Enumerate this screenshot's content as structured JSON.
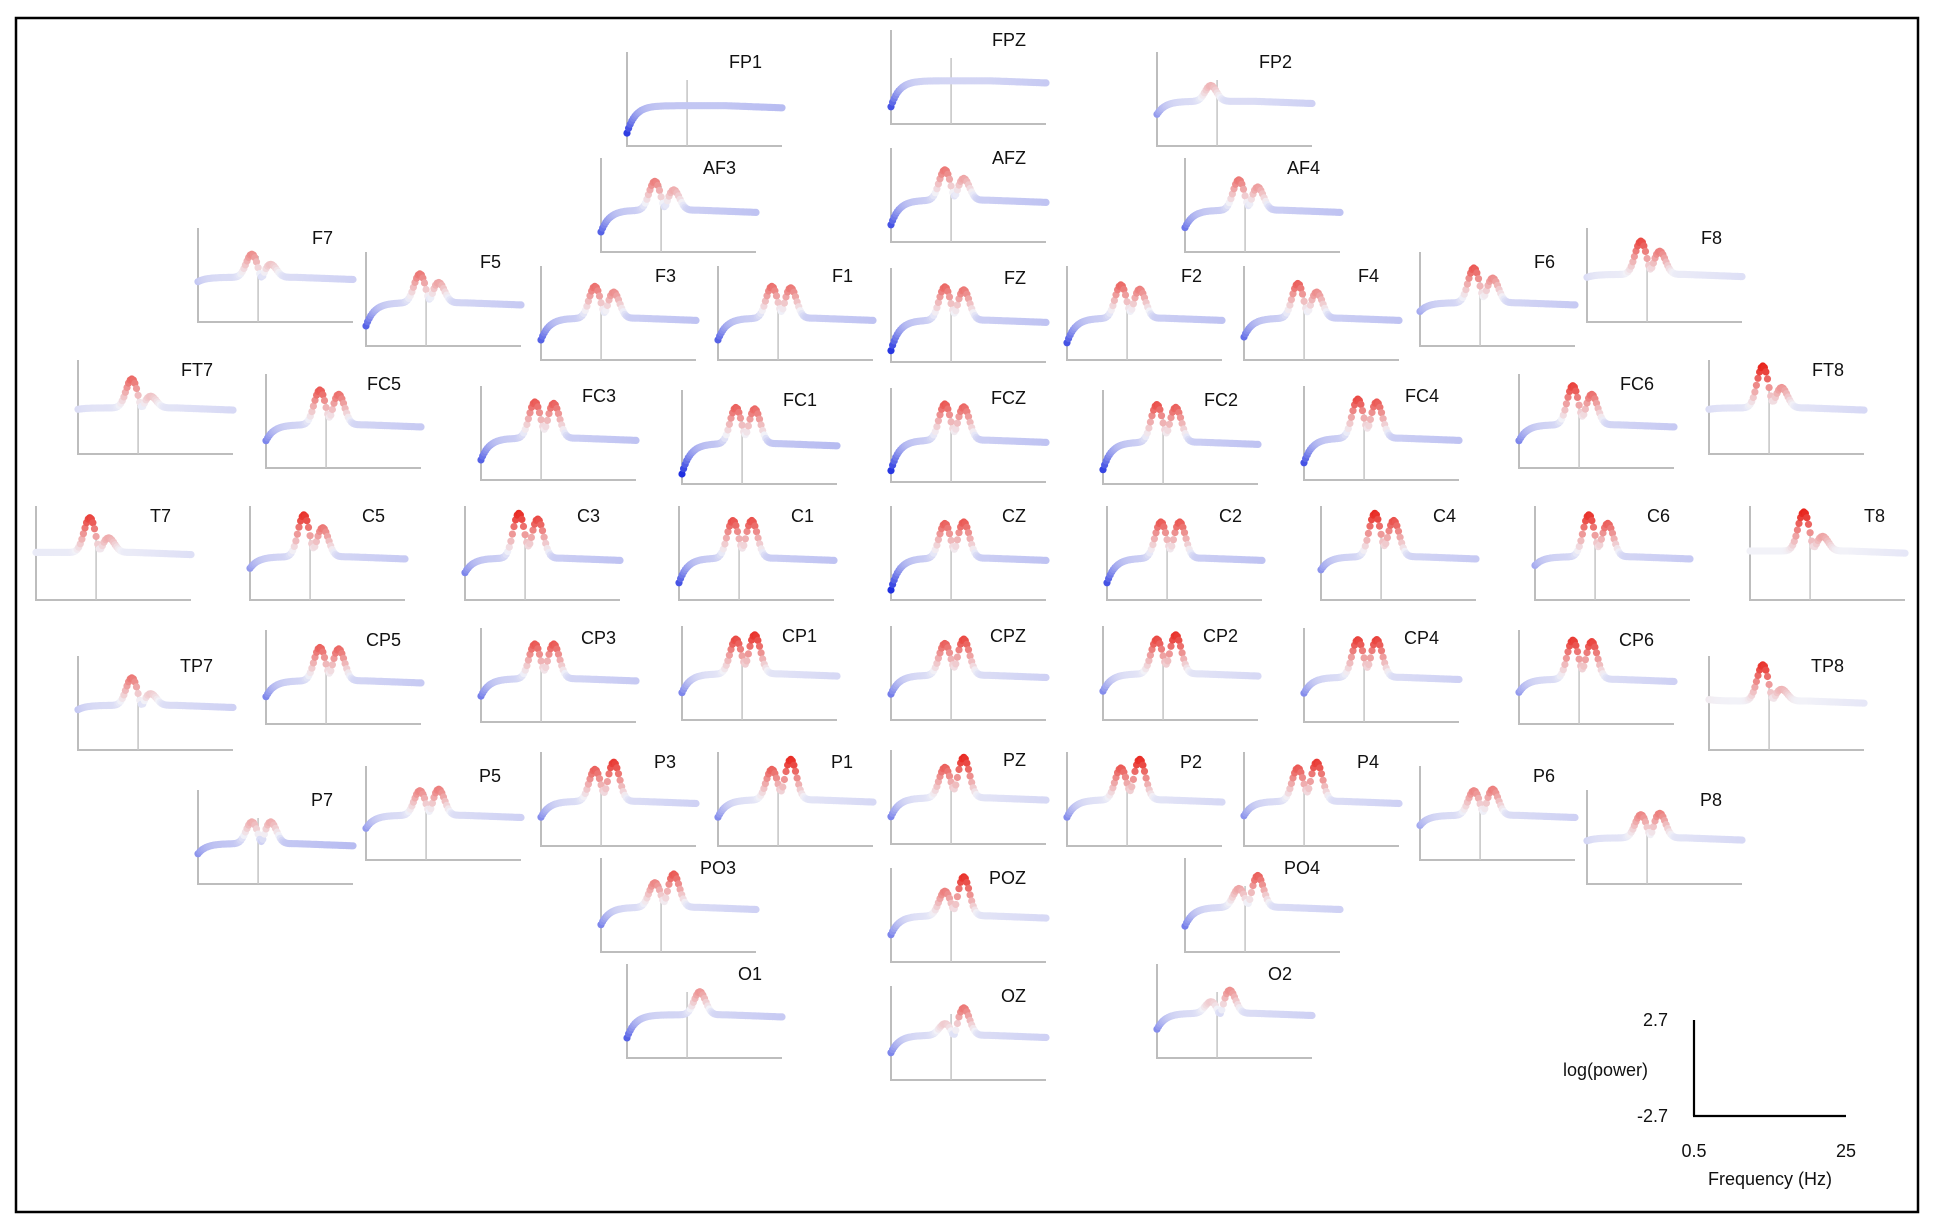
{
  "chart_data": {
    "type": "scatter",
    "layout": "topographic EEG power spectra, one small panel per channel",
    "xrange_hz": [
      0.5,
      25
    ],
    "yrange_log_power": [
      -2.7,
      2.7
    ],
    "grid": "one vertical reference line per panel",
    "color_scale": {
      "low": "#1f2fe0",
      "mid": "#f2f2f8",
      "high": "#e8231b",
      "encodes": "log(power)"
    },
    "channels": [
      {
        "name": "FP1",
        "peaks": [],
        "low": -2.5,
        "base": -0.6
      },
      {
        "name": "FPZ",
        "peaks": [],
        "low": -2.2,
        "base": -0.4
      },
      {
        "name": "FP2",
        "peaks": [
          [
            9,
            0.8
          ]
        ],
        "low": -1.2,
        "base": -0.3
      },
      {
        "name": "AF3",
        "peaks": [
          [
            9,
            1.5
          ],
          [
            12,
            0.9
          ]
        ],
        "low": -2.0,
        "base": -0.5
      },
      {
        "name": "AFZ",
        "peaks": [
          [
            9,
            1.6
          ],
          [
            12,
            1.0
          ]
        ],
        "low": -2.2,
        "base": -0.5
      },
      {
        "name": "AF4",
        "peaks": [
          [
            9,
            1.6
          ],
          [
            12,
            1.1
          ]
        ],
        "low": -1.7,
        "base": -0.5
      },
      {
        "name": "F7",
        "peaks": [
          [
            9,
            1.3
          ],
          [
            12,
            0.6
          ]
        ],
        "low": -0.6,
        "base": -0.3
      },
      {
        "name": "F5",
        "peaks": [
          [
            9,
            1.6
          ],
          [
            12,
            1.0
          ]
        ],
        "low": -2.0,
        "base": -0.4
      },
      {
        "name": "F3",
        "peaks": [
          [
            9,
            1.7
          ],
          [
            12,
            1.3
          ]
        ],
        "low": -2.0,
        "base": -0.5
      },
      {
        "name": "F1",
        "peaks": [
          [
            9,
            1.7
          ],
          [
            12,
            1.6
          ]
        ],
        "low": -2.0,
        "base": -0.5
      },
      {
        "name": "FZ",
        "peaks": [
          [
            9,
            1.8
          ],
          [
            12,
            1.6
          ]
        ],
        "low": -2.6,
        "base": -0.5
      },
      {
        "name": "F2",
        "peaks": [
          [
            9,
            1.8
          ],
          [
            12,
            1.5
          ]
        ],
        "low": -2.2,
        "base": -0.5
      },
      {
        "name": "F4",
        "peaks": [
          [
            9,
            1.9
          ],
          [
            12,
            1.3
          ]
        ],
        "low": -1.8,
        "base": -0.5
      },
      {
        "name": "F6",
        "peaks": [
          [
            9,
            2.0
          ],
          [
            12,
            1.3
          ]
        ],
        "low": -1.0,
        "base": -0.4
      },
      {
        "name": "F8",
        "peaks": [
          [
            9,
            2.2
          ],
          [
            12,
            1.5
          ]
        ],
        "low": -0.3,
        "base": -0.1
      },
      {
        "name": "FT7",
        "peaks": [
          [
            9,
            1.8
          ],
          [
            12,
            0.6
          ]
        ],
        "low": -0.3,
        "base": -0.2
      },
      {
        "name": "FC5",
        "peaks": [
          [
            9,
            2.0
          ],
          [
            12,
            1.7
          ]
        ],
        "low": -1.5,
        "base": -0.4
      },
      {
        "name": "FC3",
        "peaks": [
          [
            9,
            2.0
          ],
          [
            12,
            1.9
          ]
        ],
        "low": -2.0,
        "base": -0.5
      },
      {
        "name": "FC1",
        "peaks": [
          [
            9,
            1.9
          ],
          [
            12,
            1.8
          ]
        ],
        "low": -2.7,
        "base": -0.6
      },
      {
        "name": "FCZ",
        "peaks": [
          [
            9,
            2.0
          ],
          [
            12,
            1.8
          ]
        ],
        "low": -2.6,
        "base": -0.5
      },
      {
        "name": "FC2",
        "peaks": [
          [
            9,
            2.1
          ],
          [
            12,
            1.9
          ]
        ],
        "low": -2.4,
        "base": -0.5
      },
      {
        "name": "FC4",
        "peaks": [
          [
            9,
            2.2
          ],
          [
            12,
            2.0
          ]
        ],
        "low": -2.2,
        "base": -0.5
      },
      {
        "name": "FC6",
        "peaks": [
          [
            9,
            2.3
          ],
          [
            12,
            1.7
          ]
        ],
        "low": -1.5,
        "base": -0.4
      },
      {
        "name": "FT8",
        "peaks": [
          [
            9,
            2.7
          ],
          [
            12,
            1.2
          ]
        ],
        "low": -0.3,
        "base": -0.2
      },
      {
        "name": "T7",
        "peaks": [
          [
            9,
            2.3
          ],
          [
            12,
            0.9
          ]
        ],
        "low": -0.1,
        "base": -0.1
      },
      {
        "name": "C5",
        "peaks": [
          [
            9,
            2.5
          ],
          [
            12,
            1.6
          ]
        ],
        "low": -1.2,
        "base": -0.4
      },
      {
        "name": "C3",
        "peaks": [
          [
            9,
            2.6
          ],
          [
            12,
            2.2
          ]
        ],
        "low": -1.5,
        "base": -0.5
      },
      {
        "name": "C1",
        "peaks": [
          [
            9,
            2.1
          ],
          [
            12,
            2.1
          ]
        ],
        "low": -2.2,
        "base": -0.5
      },
      {
        "name": "CZ",
        "peaks": [
          [
            9,
            1.9
          ],
          [
            12,
            2.0
          ]
        ],
        "low": -2.7,
        "base": -0.5
      },
      {
        "name": "C2",
        "peaks": [
          [
            9,
            2.0
          ],
          [
            12,
            2.0
          ]
        ],
        "low": -2.2,
        "base": -0.5
      },
      {
        "name": "C4",
        "peaks": [
          [
            9,
            2.6
          ],
          [
            12,
            2.1
          ]
        ],
        "low": -1.3,
        "base": -0.4
      },
      {
        "name": "C6",
        "peaks": [
          [
            9,
            2.5
          ],
          [
            12,
            1.9
          ]
        ],
        "low": -1.0,
        "base": -0.4
      },
      {
        "name": "T8",
        "peaks": [
          [
            9,
            2.7
          ],
          [
            12,
            1.0
          ]
        ],
        "low": 0.0,
        "base": 0.0
      },
      {
        "name": "TP7",
        "peaks": [
          [
            9,
            1.6
          ],
          [
            12,
            0.5
          ]
        ],
        "low": -0.6,
        "base": -0.3
      },
      {
        "name": "CP5",
        "peaks": [
          [
            9,
            1.9
          ],
          [
            12,
            1.8
          ]
        ],
        "low": -1.5,
        "base": -0.4
      },
      {
        "name": "CP3",
        "peaks": [
          [
            9,
            2.0
          ],
          [
            12,
            2.0
          ]
        ],
        "low": -1.6,
        "base": -0.4
      },
      {
        "name": "CP1",
        "peaks": [
          [
            9,
            2.2
          ],
          [
            12,
            2.5
          ]
        ],
        "low": -1.5,
        "base": -0.2
      },
      {
        "name": "CPZ",
        "peaks": [
          [
            9,
            1.9
          ],
          [
            12,
            2.2
          ]
        ],
        "low": -1.6,
        "base": -0.3
      },
      {
        "name": "CP2",
        "peaks": [
          [
            9,
            2.2
          ],
          [
            12,
            2.5
          ]
        ],
        "low": -1.4,
        "base": -0.2
      },
      {
        "name": "CP4",
        "peaks": [
          [
            9,
            2.3
          ],
          [
            12,
            2.3
          ]
        ],
        "low": -1.4,
        "base": -0.3
      },
      {
        "name": "CP6",
        "peaks": [
          [
            9,
            2.4
          ],
          [
            12,
            2.3
          ]
        ],
        "low": -1.2,
        "base": -0.3
      },
      {
        "name": "TP8",
        "peaks": [
          [
            9,
            2.5
          ],
          [
            12,
            0.8
          ]
        ],
        "low": 0.1,
        "base": 0.0
      },
      {
        "name": "P7",
        "peaks": [
          [
            9,
            0.9
          ],
          [
            12,
            0.9
          ]
        ],
        "low": -1.3,
        "base": -0.6
      },
      {
        "name": "P5",
        "peaks": [
          [
            9,
            1.4
          ],
          [
            12,
            1.5
          ]
        ],
        "low": -1.2,
        "base": -0.3
      },
      {
        "name": "P3",
        "peaks": [
          [
            9,
            1.9
          ],
          [
            12,
            2.4
          ]
        ],
        "low": -1.4,
        "base": -0.3
      },
      {
        "name": "P1",
        "peaks": [
          [
            9,
            1.9
          ],
          [
            12,
            2.6
          ]
        ],
        "low": -1.4,
        "base": -0.2
      },
      {
        "name": "PZ",
        "peaks": [
          [
            9,
            1.9
          ],
          [
            12,
            2.6
          ]
        ],
        "low": -1.5,
        "base": -0.2
      },
      {
        "name": "P2",
        "peaks": [
          [
            9,
            2.0
          ],
          [
            12,
            2.6
          ]
        ],
        "low": -1.4,
        "base": -0.2
      },
      {
        "name": "P4",
        "peaks": [
          [
            9,
            2.0
          ],
          [
            12,
            2.4
          ]
        ],
        "low": -1.3,
        "base": -0.3
      },
      {
        "name": "P6",
        "peaks": [
          [
            9,
            1.4
          ],
          [
            12,
            1.5
          ]
        ],
        "low": -1.0,
        "base": -0.3
      },
      {
        "name": "P8",
        "peaks": [
          [
            9,
            1.4
          ],
          [
            12,
            1.5
          ]
        ],
        "low": -0.4,
        "base": -0.2
      },
      {
        "name": "PO3",
        "peaks": [
          [
            9,
            1.4
          ],
          [
            12,
            2.0
          ]
        ],
        "low": -1.5,
        "base": -0.3
      },
      {
        "name": "POZ",
        "peaks": [
          [
            9,
            1.5
          ],
          [
            12,
            2.5
          ]
        ],
        "low": -1.5,
        "base": -0.2
      },
      {
        "name": "PO4",
        "peaks": [
          [
            9,
            1.0
          ],
          [
            12,
            1.9
          ]
        ],
        "low": -1.6,
        "base": -0.3
      },
      {
        "name": "O1",
        "peaks": [
          [
            12,
            1.2
          ]
        ],
        "low": -2.0,
        "base": -0.4
      },
      {
        "name": "OZ",
        "peaks": [
          [
            9,
            0.5
          ],
          [
            12,
            1.6
          ]
        ],
        "low": -1.5,
        "base": -0.3
      },
      {
        "name": "O2",
        "peaks": [
          [
            9,
            0.5
          ],
          [
            12,
            1.3
          ]
        ],
        "low": -1.4,
        "base": -0.3
      }
    ],
    "scale_legend": {
      "y_top_label": "2.7",
      "y_bottom_label": "-2.7",
      "ylabel": "log(power)",
      "x_left_label": "0.5",
      "x_right_label": "25",
      "xlabel": "Frequency (Hz)"
    }
  }
}
